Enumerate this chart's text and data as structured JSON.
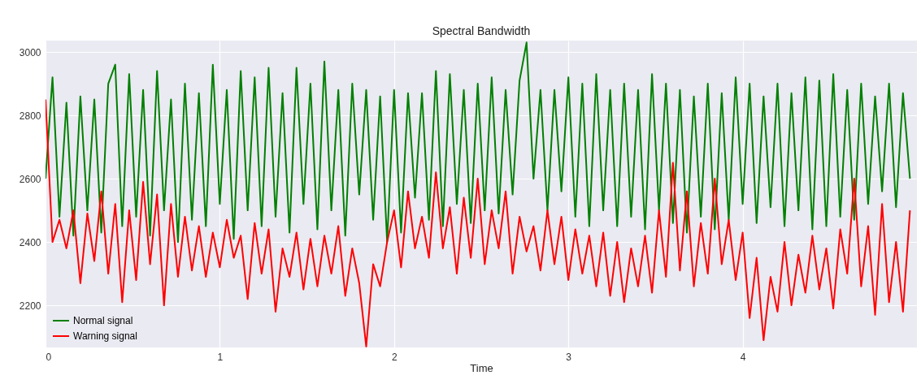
{
  "chart_data": {
    "type": "line",
    "title": "Spectral Bandwidth",
    "xlabel": "Time",
    "x": [
      0,
      0.04,
      0.08,
      0.12,
      0.16,
      0.2,
      0.24,
      0.28,
      0.32,
      0.36,
      0.4,
      0.44,
      0.48,
      0.52,
      0.56,
      0.6,
      0.64,
      0.68,
      0.72,
      0.76,
      0.8,
      0.84,
      0.88,
      0.92,
      0.96,
      1,
      1.04,
      1.08,
      1.12,
      1.16,
      1.2,
      1.24,
      1.28,
      1.32,
      1.36,
      1.4,
      1.44,
      1.48,
      1.52,
      1.56,
      1.6,
      1.64,
      1.68,
      1.72,
      1.76,
      1.8,
      1.84,
      1.88,
      1.92,
      1.96,
      2,
      2.04,
      2.08,
      2.12,
      2.16,
      2.2,
      2.24,
      2.28,
      2.32,
      2.36,
      2.4,
      2.44,
      2.48,
      2.52,
      2.56,
      2.6,
      2.64,
      2.68,
      2.72,
      2.76,
      2.8,
      2.84,
      2.88,
      2.92,
      2.96,
      3,
      3.04,
      3.08,
      3.12,
      3.16,
      3.2,
      3.24,
      3.28,
      3.32,
      3.36,
      3.4,
      3.44,
      3.48,
      3.52,
      3.56,
      3.6,
      3.64,
      3.68,
      3.72,
      3.76,
      3.8,
      3.84,
      3.88,
      3.92,
      3.96,
      4,
      4.04,
      4.08,
      4.12,
      4.16,
      4.2,
      4.24,
      4.28,
      4.32,
      4.36,
      4.4,
      4.44,
      4.48,
      4.52,
      4.56,
      4.6,
      4.64,
      4.68,
      4.72,
      4.76,
      4.8,
      4.84,
      4.88,
      4.92,
      4.96
    ],
    "series": [
      {
        "name": "Normal signal",
        "color": "#008000",
        "values": [
          2600,
          2920,
          2480,
          2840,
          2420,
          2860,
          2500,
          2850,
          2430,
          2900,
          2960,
          2450,
          2930,
          2480,
          2880,
          2420,
          2940,
          2500,
          2850,
          2400,
          2900,
          2470,
          2870,
          2450,
          2960,
          2520,
          2880,
          2410,
          2940,
          2500,
          2920,
          2450,
          2950,
          2480,
          2870,
          2430,
          2950,
          2520,
          2900,
          2440,
          2970,
          2500,
          2880,
          2420,
          2900,
          2550,
          2880,
          2470,
          2860,
          2400,
          2880,
          2430,
          2870,
          2540,
          2870,
          2470,
          2940,
          2450,
          2930,
          2520,
          2880,
          2460,
          2900,
          2500,
          2920,
          2490,
          2880,
          2550,
          2910,
          3030,
          2600,
          2880,
          2500,
          2880,
          2560,
          2920,
          2480,
          2900,
          2450,
          2930,
          2500,
          2880,
          2450,
          2900,
          2480,
          2880,
          2440,
          2930,
          2500,
          2900,
          2460,
          2880,
          2430,
          2860,
          2480,
          2900,
          2440,
          2870,
          2470,
          2920,
          2520,
          2900,
          2460,
          2860,
          2510,
          2900,
          2450,
          2870,
          2500,
          2920,
          2440,
          2910,
          2450,
          2930,
          2480,
          2880,
          2470,
          2900,
          2520,
          2860,
          2560,
          2900,
          2510,
          2870,
          2600
        ]
      },
      {
        "name": "Warning signal",
        "color": "#ff0000",
        "values": [
          2850,
          2400,
          2470,
          2380,
          2500,
          2270,
          2490,
          2340,
          2560,
          2300,
          2520,
          2210,
          2500,
          2280,
          2590,
          2330,
          2550,
          2200,
          2520,
          2290,
          2480,
          2310,
          2450,
          2290,
          2430,
          2320,
          2470,
          2350,
          2420,
          2220,
          2460,
          2300,
          2440,
          2180,
          2380,
          2290,
          2430,
          2250,
          2410,
          2260,
          2420,
          2300,
          2450,
          2230,
          2380,
          2270,
          2070,
          2330,
          2260,
          2400,
          2500,
          2320,
          2560,
          2380,
          2480,
          2350,
          2620,
          2380,
          2510,
          2300,
          2540,
          2350,
          2600,
          2330,
          2500,
          2380,
          2560,
          2300,
          2480,
          2370,
          2450,
          2310,
          2500,
          2330,
          2480,
          2280,
          2440,
          2300,
          2420,
          2260,
          2430,
          2230,
          2400,
          2210,
          2380,
          2260,
          2420,
          2240,
          2500,
          2290,
          2650,
          2310,
          2560,
          2260,
          2460,
          2300,
          2600,
          2330,
          2470,
          2280,
          2430,
          2160,
          2350,
          2090,
          2290,
          2180,
          2400,
          2200,
          2360,
          2240,
          2420,
          2250,
          2380,
          2190,
          2440,
          2300,
          2600,
          2260,
          2450,
          2170,
          2520,
          2210,
          2400,
          2180,
          2500
        ]
      }
    ],
    "xlim": [
      0,
      5
    ],
    "ylim": [
      2067,
      3036
    ],
    "xticks": [
      0,
      1,
      2,
      3,
      4
    ],
    "yticks": [
      2200,
      2400,
      2600,
      2800,
      3000
    ],
    "grid": true,
    "legend": "bottom left"
  }
}
